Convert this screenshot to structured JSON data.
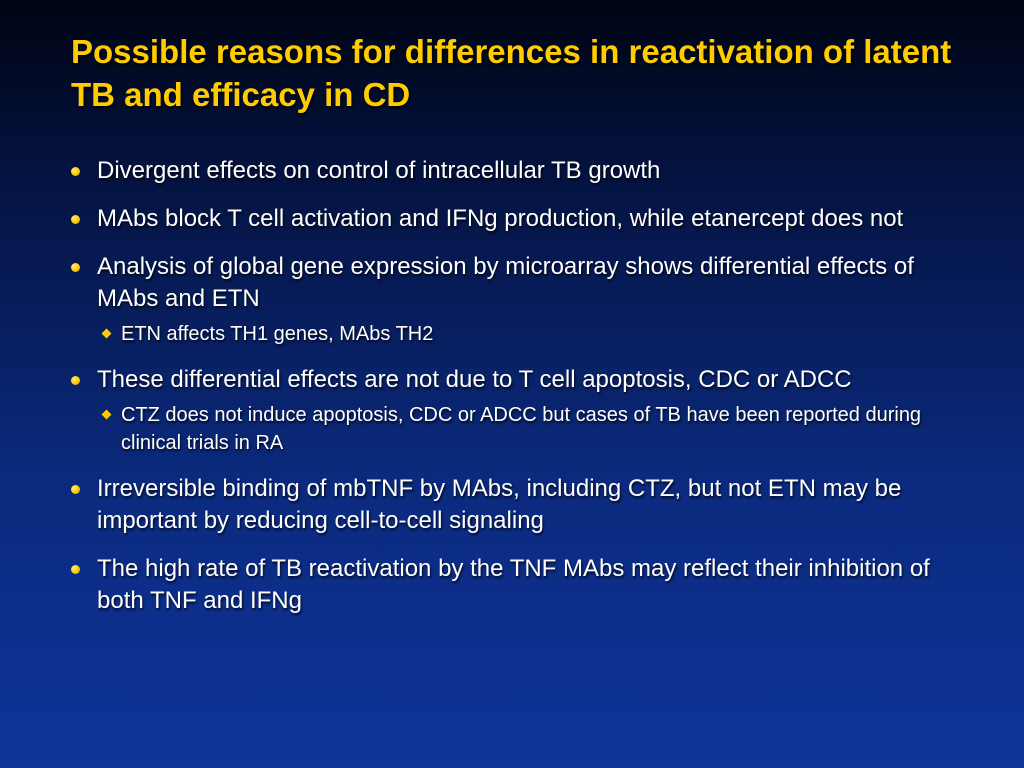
{
  "title": "Possible reasons for differences in reactivation of latent TB and efficacy in CD",
  "colors": {
    "title": "#ffcc00",
    "text": "#ffffff",
    "bullet": "#ffcc00",
    "background": "#0b2a7d"
  },
  "bullets": [
    {
      "text": "Divergent effects on control of intracellular TB growth"
    },
    {
      "text": "MAbs block T cell activation and IFNg production, while etanercept does not"
    },
    {
      "text": "Analysis of global gene expression by microarray shows differential effects of MAbs and ETN",
      "sub": [
        "ETN affects TH1 genes, MAbs TH2"
      ]
    },
    {
      "text": "These differential effects are not due to T cell apoptosis, CDC or ADCC",
      "sub": [
        "CTZ does not induce apoptosis, CDC or ADCC but cases of TB have been reported during clinical trials in RA"
      ]
    },
    {
      "text": "Irreversible binding of mbTNF by MAbs, including CTZ, but not ETN may be important by reducing cell-to-cell signaling"
    },
    {
      "text": "The high rate of TB reactivation by the TNF MAbs may reflect their inhibition of both TNF and IFNg"
    }
  ]
}
